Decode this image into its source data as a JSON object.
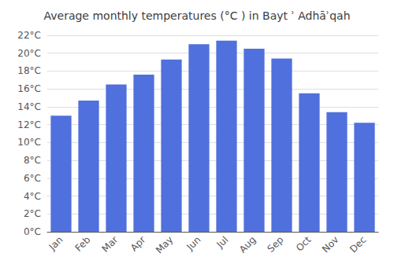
{
  "chart_data": {
    "type": "bar",
    "title": "Average monthly temperatures (°C ) in Bayt ʾ Adhāʾqah",
    "categories": [
      "Jan",
      "Feb",
      "Mar",
      "Apr",
      "May",
      "Jun",
      "Jul",
      "Aug",
      "Sep",
      "Oct",
      "Nov",
      "Dec"
    ],
    "values": [
      13.0,
      14.7,
      16.5,
      17.6,
      19.3,
      21.0,
      21.4,
      20.5,
      19.4,
      15.5,
      13.4,
      12.2
    ],
    "ylim": [
      0,
      22
    ],
    "yticks": [
      {
        "value": 0,
        "label": "0°C"
      },
      {
        "value": 2,
        "label": "2°C"
      },
      {
        "value": 4,
        "label": "4°C"
      },
      {
        "value": 6,
        "label": "6°C"
      },
      {
        "value": 8,
        "label": "8°C"
      },
      {
        "value": 10,
        "label": "10°C"
      },
      {
        "value": 12,
        "label": "12°C"
      },
      {
        "value": 14,
        "label": "14°C"
      },
      {
        "value": 16,
        "label": "16°C"
      },
      {
        "value": 18,
        "label": "18°C"
      },
      {
        "value": 20,
        "label": "20°C"
      },
      {
        "value": 22,
        "label": "22°C"
      }
    ],
    "grid": true
  }
}
